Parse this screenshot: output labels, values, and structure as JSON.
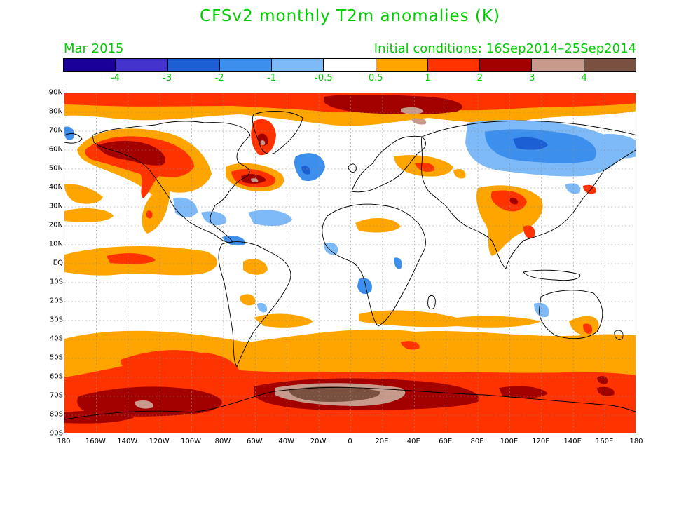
{
  "header": {
    "title": "CFSv2 monthly T2m anomalies (K)",
    "valid_month": "Mar 2015",
    "initial_conditions": "Initial conditions: 16Sep2014–25Sep2014"
  },
  "legend": {
    "colors": [
      "#1a0099",
      "#4433cc",
      "#1c5fd4",
      "#3d8fee",
      "#7dbaf7",
      "#ffffff",
      "#ffa500",
      "#ff3300",
      "#a30000",
      "#c89a8c",
      "#7a5040"
    ],
    "labels": [
      "-4",
      "-3",
      "-2",
      "-1",
      "-0.5",
      "0.5",
      "1",
      "2",
      "3",
      "4"
    ]
  },
  "axes": {
    "lat_labels": [
      "90N",
      "80N",
      "70N",
      "60N",
      "50N",
      "40N",
      "30N",
      "20N",
      "10N",
      "EQ",
      "10S",
      "20S",
      "30S",
      "40S",
      "50S",
      "60S",
      "70S",
      "80S",
      "90S"
    ],
    "lon_labels": [
      "180",
      "160W",
      "140W",
      "120W",
      "100W",
      "80W",
      "60W",
      "40W",
      "20W",
      "0",
      "20E",
      "40E",
      "60E",
      "80E",
      "100E",
      "120E",
      "140E",
      "160E",
      "180"
    ]
  }
}
